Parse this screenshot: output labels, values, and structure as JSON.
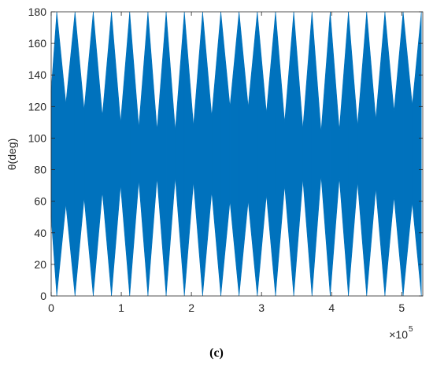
{
  "chart_data": {
    "type": "band",
    "y_label": "θ(deg)",
    "caption": "(c)",
    "x_scale_base": "×10",
    "x_scale_exponent": "5",
    "color": "#0072bd",
    "x": [
      0,
      8000,
      21000,
      34000,
      47000,
      60000,
      73000,
      86000,
      99000,
      112000,
      125000,
      138000,
      151000,
      164000,
      177000,
      190000,
      203000,
      216000,
      229000,
      242000,
      255000,
      268000,
      281000,
      294000,
      307000,
      320000,
      333000,
      346000,
      359000,
      372000,
      385000,
      398000,
      411000,
      424000,
      437000,
      450000,
      463000,
      476000,
      489000,
      502000,
      515000,
      528000
    ],
    "series": [
      {
        "name": "upper",
        "values": [
          130,
          180,
          122,
          180,
          118,
          180,
          114,
          180,
          110,
          180,
          107,
          180,
          105,
          180,
          105,
          180,
          108,
          180,
          114,
          180,
          120,
          180,
          120,
          180,
          116,
          180,
          110,
          180,
          106,
          180,
          104,
          180,
          105,
          180,
          108,
          180,
          112,
          180,
          117,
          180,
          121,
          180
        ]
      },
      {
        "name": "lower",
        "values": [
          50,
          0,
          58,
          0,
          62,
          0,
          66,
          0,
          70,
          0,
          73,
          0,
          75,
          0,
          75,
          0,
          72,
          0,
          66,
          0,
          60,
          0,
          60,
          0,
          64,
          0,
          70,
          0,
          74,
          0,
          76,
          0,
          75,
          0,
          72,
          0,
          68,
          0,
          63,
          0,
          59,
          0
        ]
      }
    ],
    "xlim": [
      0,
      530000
    ],
    "xticks": [
      0,
      {
        "value": 100000,
        "label": "1"
      },
      {
        "value": 200000,
        "label": "2"
      },
      {
        "value": 300000,
        "label": "3"
      },
      {
        "value": 400000,
        "label": "4"
      },
      {
        "value": 500000,
        "label": "5"
      }
    ],
    "ylim": [
      0,
      180
    ],
    "yticks": [
      0,
      20,
      40,
      60,
      80,
      100,
      120,
      140,
      160,
      180
    ]
  }
}
